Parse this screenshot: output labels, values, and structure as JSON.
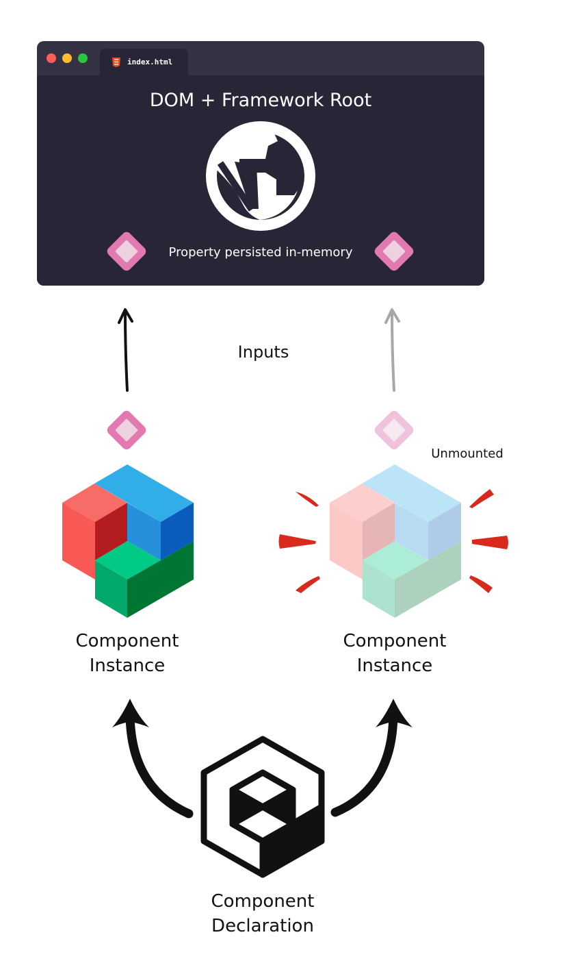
{
  "browser": {
    "tab_label": "index.html",
    "title": "DOM + Framework Root",
    "property_label": "Property persisted in-memory"
  },
  "edges": {
    "inputs_label": "Inputs"
  },
  "instance_left": {
    "line1": "Component",
    "line2": "Instance"
  },
  "instance_right": {
    "line1": "Component",
    "line2": "Instance",
    "status": "Unmounted"
  },
  "declaration": {
    "line1": "Component",
    "line2": "Declaration"
  },
  "icons": {
    "tab_icon": "html5-icon",
    "root_icon": "globe-icon",
    "property_icon": "diamond-icon",
    "instance_icon": "cube-icon",
    "declaration_icon": "cube-outline-icon"
  },
  "colors": {
    "window_bg": "#272536",
    "window_chrome": "#353343",
    "diamond": "#e27ab1",
    "arrow_dark": "#111111",
    "arrow_light": "#a8a8a8",
    "burst_red": "#d9291c"
  }
}
